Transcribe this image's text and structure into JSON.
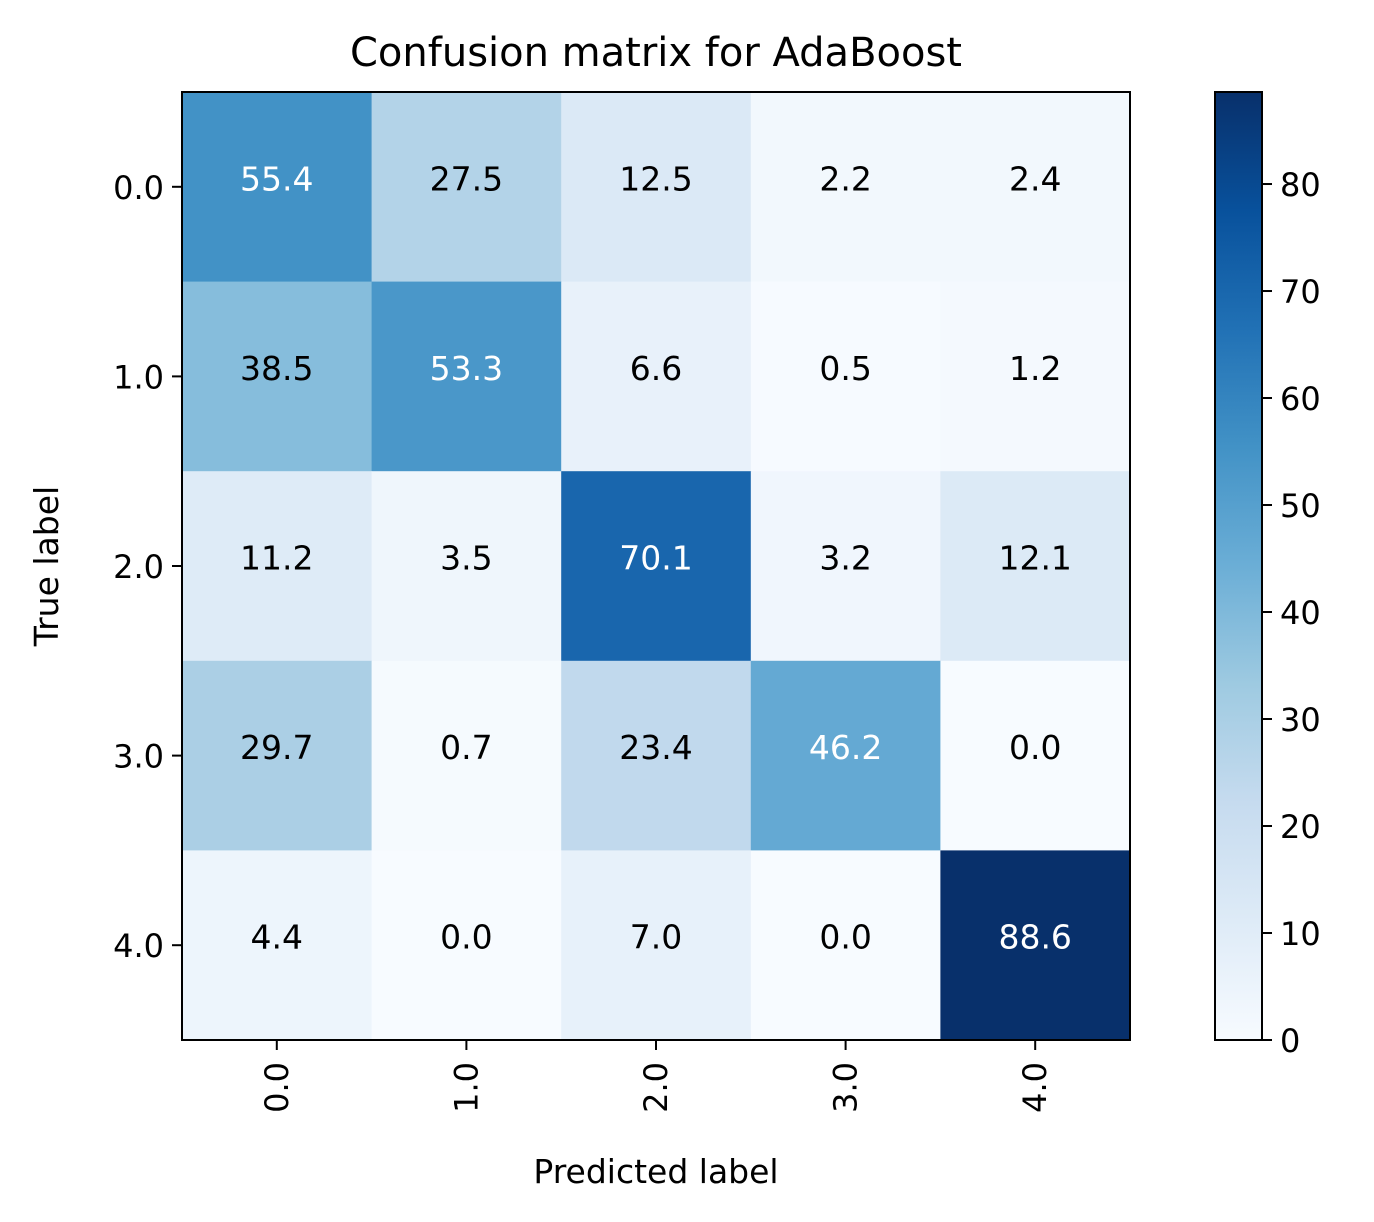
{
  "chart_data": {
    "type": "heatmap",
    "title": "Confusion matrix for AdaBoost",
    "xlabel": "Predicted label",
    "ylabel": "True label",
    "x_categories": [
      "0.0",
      "1.0",
      "2.0",
      "3.0",
      "4.0"
    ],
    "y_categories": [
      "0.0",
      "1.0",
      "2.0",
      "3.0",
      "4.0"
    ],
    "values": [
      [
        "55.4",
        "27.5",
        "12.5",
        "2.2",
        "2.4"
      ],
      [
        "38.5",
        "53.3",
        "6.6",
        "0.5",
        "1.2"
      ],
      [
        "11.2",
        "3.5",
        "70.1",
        "3.2",
        "12.1"
      ],
      [
        "29.7",
        "0.7",
        "23.4",
        "46.2",
        "0.0"
      ],
      [
        "4.4",
        "0.0",
        "7.0",
        "0.0",
        "88.6"
      ]
    ],
    "colorbar": {
      "min": 0,
      "max": 88.6,
      "ticks": [
        "0",
        "10",
        "20",
        "30",
        "40",
        "50",
        "60",
        "70",
        "80"
      ],
      "colormap": "Blues"
    },
    "colors": {
      "cmap_stops": [
        "#f7fbff",
        "#deebf7",
        "#c6dbef",
        "#9ecae1",
        "#6baed6",
        "#4292c6",
        "#2171b5",
        "#08519c",
        "#08306b"
      ],
      "text_dark": "#000000",
      "text_light": "#ffffff"
    }
  }
}
